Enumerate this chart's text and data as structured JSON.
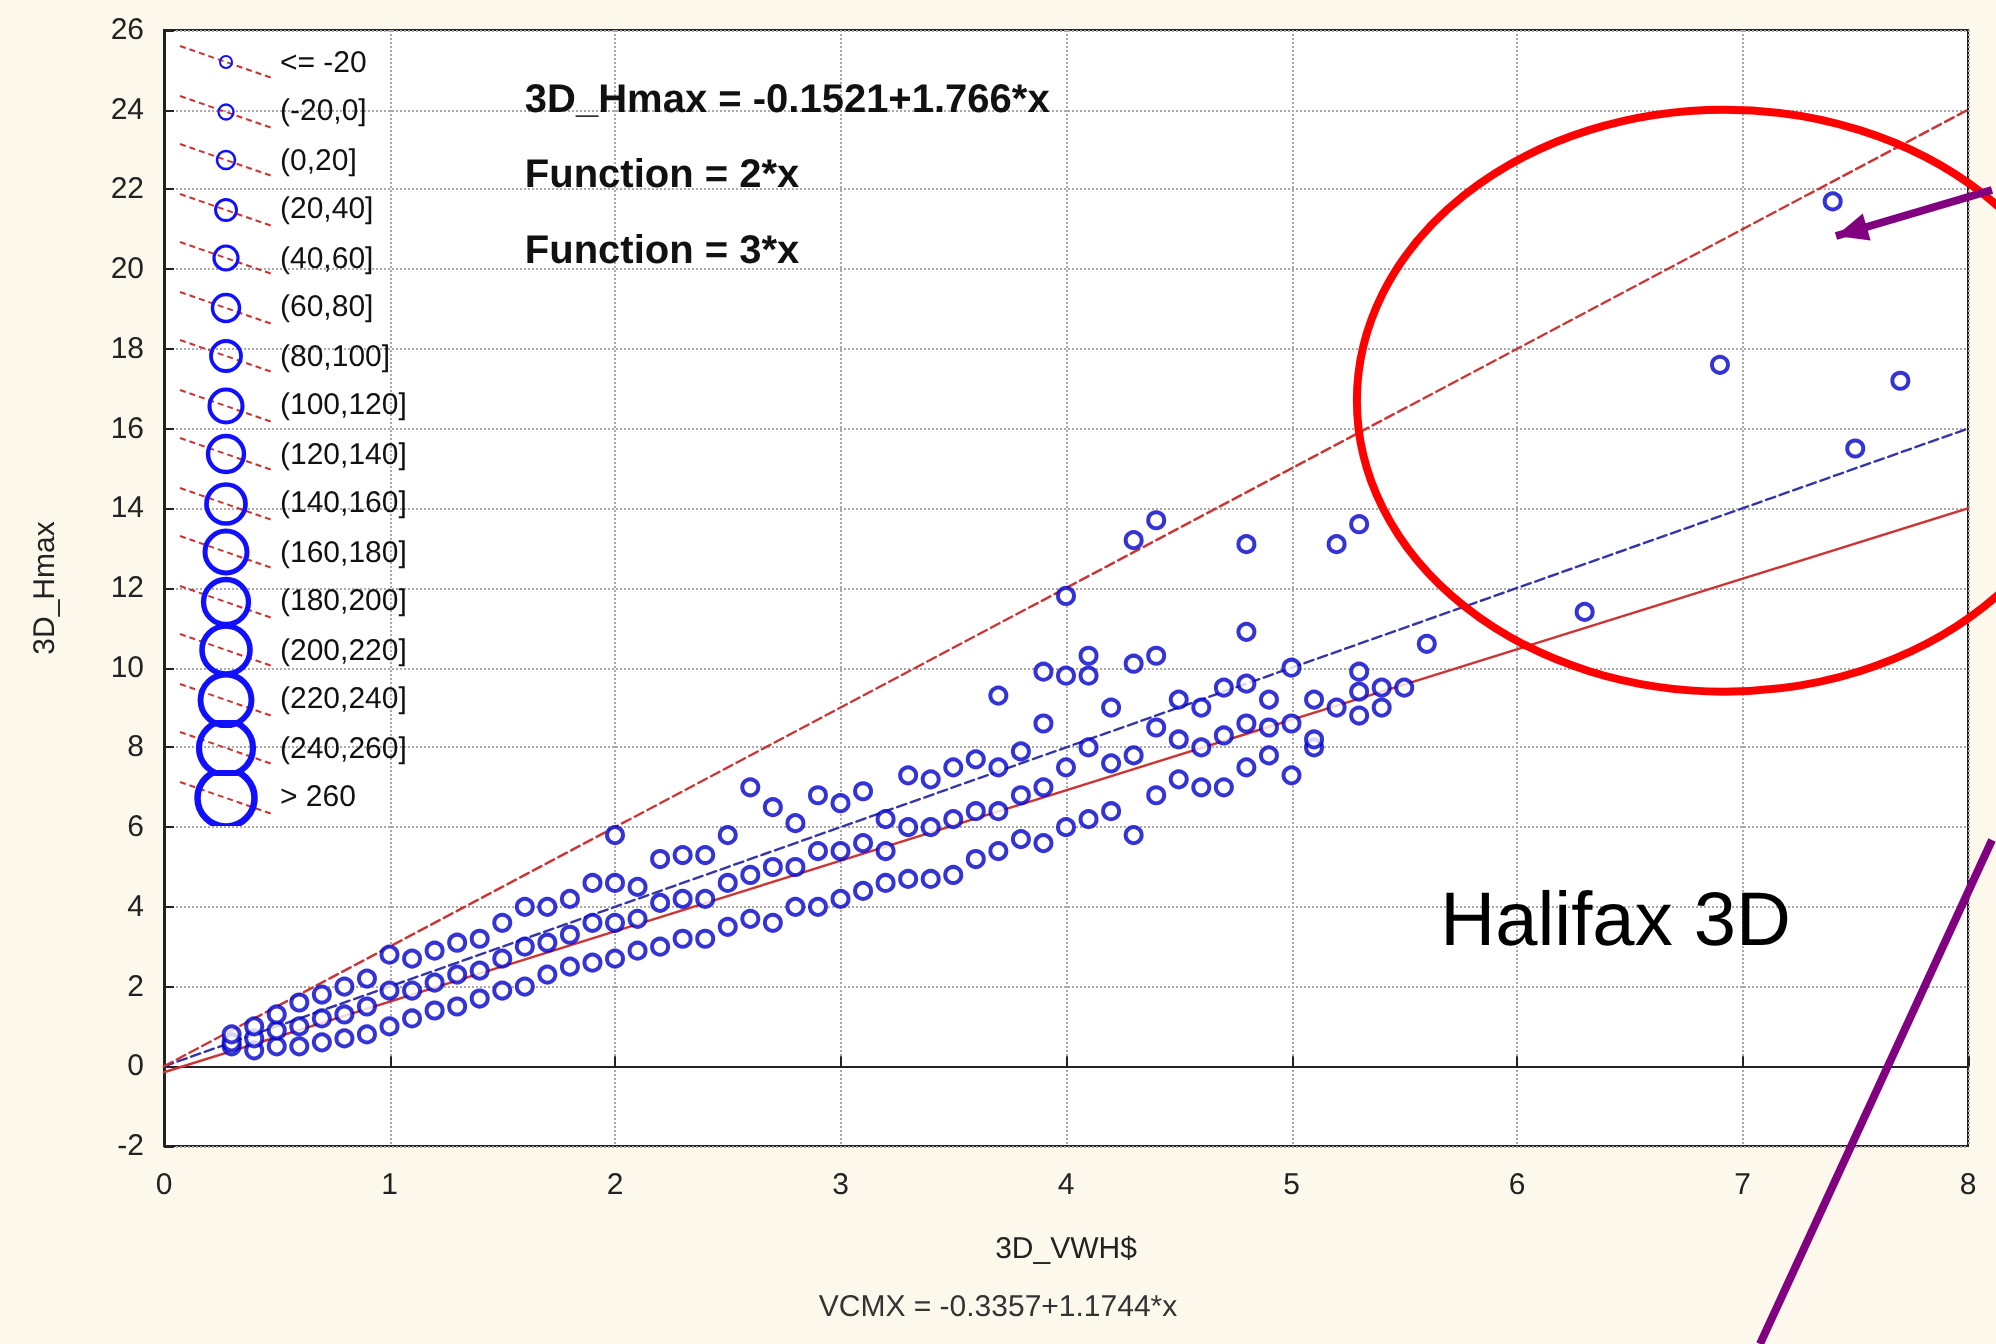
{
  "chart_data": {
    "type": "scatter",
    "xlabel": "3D_VWH$",
    "ylabel": "3D_Hmax",
    "xlim": [
      0,
      8
    ],
    "xticks": [
      0,
      1,
      2,
      3,
      4,
      5,
      6,
      7,
      8
    ],
    "ylim": [
      -2,
      26
    ],
    "yticks": [
      -2,
      0,
      2,
      4,
      6,
      8,
      10,
      12,
      14,
      16,
      18,
      20,
      22,
      24,
      26
    ],
    "grid": true,
    "marker": "circle",
    "annotations": [
      "3D_Hmax = -0.1521+1.766*x",
      "Function = 2*x",
      "Function = 3*x",
      "Halifax 3D",
      "VCMX = -0.3357+1.1744*x",
      "<= -20",
      "(-20,0]",
      "(0,20]",
      "(20,40]",
      "(40,60]",
      "(60,80]",
      "(80,100]",
      "(100,120]",
      "(120,140]",
      "(140,160]",
      "(160,180]",
      "(180,200]",
      "(200,220]",
      "(220,240]",
      "(240,260]",
      "> 260"
    ],
    "series": [
      {
        "color": "#0000cc",
        "x": [
          0.3,
          0.3,
          0.3,
          0.4,
          0.4,
          0.4,
          0.5,
          0.5,
          0.5,
          0.6,
          0.6,
          0.6,
          0.7,
          0.7,
          0.7,
          0.8,
          0.8,
          0.8,
          0.9,
          0.9,
          0.9,
          1.0,
          1.0,
          1.0,
          1.1,
          1.1,
          1.1,
          1.2,
          1.2,
          1.2,
          1.3,
          1.3,
          1.3,
          1.4,
          1.4,
          1.4,
          1.5,
          1.5,
          1.5,
          1.6,
          1.6,
          1.6,
          1.7,
          1.7,
          1.7,
          1.8,
          1.8,
          1.8,
          1.9,
          1.9,
          1.9,
          2.0,
          2.0,
          2.0,
          2.0,
          2.1,
          2.1,
          2.1,
          2.2,
          2.2,
          2.2,
          2.3,
          2.3,
          2.3,
          2.4,
          2.4,
          2.4,
          2.5,
          2.5,
          2.5,
          2.6,
          2.6,
          2.6,
          2.7,
          2.7,
          2.7,
          2.8,
          2.8,
          2.8,
          2.9,
          2.9,
          2.9,
          3.0,
          3.0,
          3.0,
          3.1,
          3.1,
          3.1,
          3.2,
          3.2,
          3.2,
          3.3,
          3.3,
          3.3,
          3.4,
          3.4,
          3.4,
          3.5,
          3.5,
          3.5,
          3.6,
          3.6,
          3.6,
          3.7,
          3.7,
          3.7,
          3.7,
          3.8,
          3.8,
          3.8,
          3.9,
          3.9,
          3.9,
          3.9,
          4.0,
          4.0,
          4.0,
          4.0,
          4.1,
          4.1,
          4.1,
          4.1,
          4.2,
          4.2,
          4.2,
          4.3,
          4.3,
          4.3,
          4.3,
          4.4,
          4.4,
          4.4,
          4.4,
          4.5,
          4.5,
          4.5,
          4.6,
          4.6,
          4.6,
          4.7,
          4.7,
          4.7,
          4.8,
          4.8,
          4.8,
          4.8,
          4.8,
          4.9,
          4.9,
          4.9,
          5.0,
          5.0,
          5.0,
          5.1,
          5.1,
          5.1,
          5.2,
          5.2,
          5.3,
          5.3,
          5.3,
          5.3,
          5.4,
          5.4,
          5.5,
          5.6,
          6.3,
          6.9,
          7.4,
          7.5,
          7.7
        ],
        "values": [
          0.5,
          0.6,
          0.8,
          0.4,
          0.7,
          1.0,
          0.5,
          0.9,
          1.3,
          0.5,
          1.0,
          1.6,
          0.6,
          1.2,
          1.8,
          0.7,
          1.3,
          2.0,
          0.8,
          1.5,
          2.2,
          1.0,
          1.9,
          2.8,
          1.2,
          1.9,
          2.7,
          1.4,
          2.1,
          2.9,
          1.5,
          2.3,
          3.1,
          1.7,
          2.4,
          3.2,
          1.9,
          2.7,
          3.6,
          2.0,
          3.0,
          4.0,
          2.3,
          3.1,
          4.0,
          2.5,
          3.3,
          4.2,
          2.6,
          3.6,
          4.6,
          2.7,
          3.6,
          4.6,
          5.8,
          2.9,
          3.7,
          4.5,
          3.0,
          4.1,
          5.2,
          3.2,
          4.2,
          5.3,
          3.2,
          4.2,
          5.3,
          3.5,
          4.6,
          5.8,
          3.7,
          4.8,
          7.0,
          3.6,
          5.0,
          6.5,
          4.0,
          5.0,
          6.1,
          4.0,
          5.4,
          6.8,
          4.2,
          5.4,
          6.6,
          4.4,
          5.6,
          6.9,
          4.6,
          5.4,
          6.2,
          4.7,
          6.0,
          7.3,
          4.7,
          6.0,
          7.2,
          4.8,
          6.2,
          7.5,
          5.2,
          6.4,
          7.7,
          5.4,
          6.4,
          7.5,
          9.3,
          5.7,
          6.8,
          7.9,
          5.6,
          7.0,
          8.6,
          9.9,
          6.0,
          7.5,
          9.8,
          11.8,
          6.2,
          8.0,
          9.8,
          10.3,
          6.4,
          7.6,
          9.0,
          5.8,
          7.8,
          10.1,
          13.2,
          6.8,
          8.5,
          10.3,
          13.7,
          7.2,
          8.2,
          9.2,
          7.0,
          8.0,
          9.0,
          7.0,
          8.3,
          9.5,
          7.5,
          8.6,
          9.6,
          10.9,
          13.1,
          7.8,
          8.5,
          9.2,
          7.3,
          8.6,
          10.0,
          8.0,
          8.2,
          9.2,
          9.0,
          13.1,
          8.8,
          9.4,
          9.9,
          13.6,
          9.0,
          9.5,
          9.5,
          10.6,
          11.4,
          17.6,
          21.7,
          15.5,
          17.2
        ]
      },
      {
        "type": "line",
        "color": "#cc3333",
        "line_style": "solid",
        "marker": "none",
        "x": [
          0,
          8
        ],
        "values": [
          -0.15,
          14.0
        ]
      },
      {
        "type": "line",
        "color": "#3333aa",
        "line_style": "dashed",
        "marker": "none",
        "x": [
          0,
          8
        ],
        "values": [
          0,
          16
        ]
      },
      {
        "type": "line",
        "color": "#cc3333",
        "line_style": "dashed",
        "marker": "none",
        "x": [
          0,
          8
        ],
        "values": [
          0,
          24
        ]
      }
    ]
  }
}
